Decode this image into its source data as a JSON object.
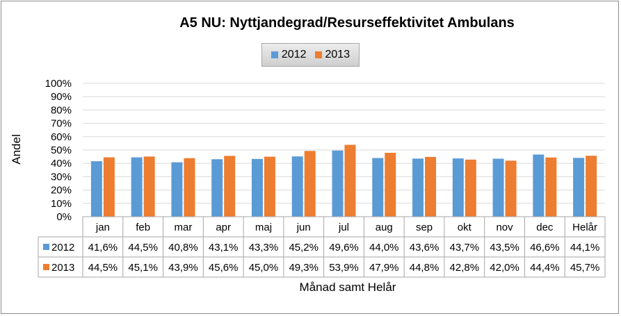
{
  "chart_data": {
    "type": "bar",
    "title": "A5 NU: Nyttjandegrad/Resurseffektivitet Ambulans",
    "xlabel": "Månad samt Helår",
    "ylabel": "Andel",
    "ylim": [
      0,
      100
    ],
    "yticks": [
      "0%",
      "10%",
      "20%",
      "30%",
      "40%",
      "50%",
      "60%",
      "70%",
      "80%",
      "90%",
      "100%"
    ],
    "categories": [
      "jan",
      "feb",
      "mar",
      "apr",
      "maj",
      "jun",
      "jul",
      "aug",
      "sep",
      "okt",
      "nov",
      "dec",
      "Helår"
    ],
    "legend_position": "top-center",
    "grid": true,
    "series": [
      {
        "name": "2012",
        "color": "#5b9bd5",
        "values": [
          41.6,
          44.5,
          40.8,
          43.1,
          43.3,
          45.2,
          49.6,
          44.0,
          43.6,
          43.7,
          43.5,
          46.6,
          44.1
        ],
        "labels": [
          "41,6%",
          "44,5%",
          "40,8%",
          "43,1%",
          "43,3%",
          "45,2%",
          "49,6%",
          "44,0%",
          "43,6%",
          "43,7%",
          "43,5%",
          "46,6%",
          "44,1%"
        ]
      },
      {
        "name": "2013",
        "color": "#ed7d31",
        "values": [
          44.5,
          45.1,
          43.9,
          45.6,
          45.0,
          49.3,
          53.9,
          47.9,
          44.8,
          42.8,
          42.0,
          44.4,
          45.7
        ],
        "labels": [
          "44,5%",
          "45,1%",
          "43,9%",
          "45,6%",
          "45,0%",
          "49,3%",
          "53,9%",
          "47,9%",
          "44,8%",
          "42,8%",
          "42,0%",
          "44,4%",
          "45,7%"
        ]
      }
    ]
  }
}
